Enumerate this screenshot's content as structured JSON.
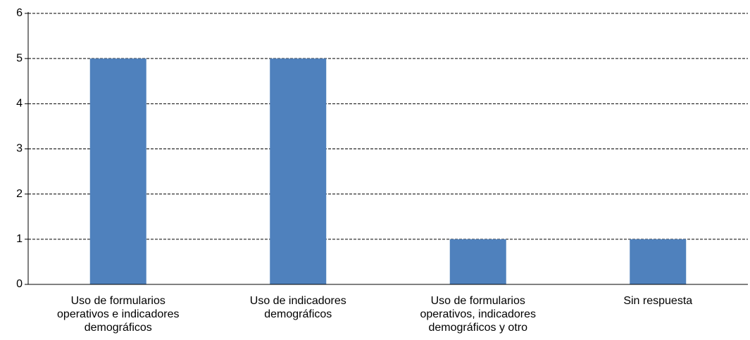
{
  "chart_data": {
    "type": "bar",
    "categories": [
      "Uso de formularios operativos e indicadores demográficos",
      "Uso de indicadores demográficos",
      "Uso de formularios operativos, indicadores demográficos y otro",
      "Sin respuesta"
    ],
    "values": [
      5,
      5,
      1,
      1
    ],
    "color": "#4f81bd",
    "ylim": [
      0,
      6
    ],
    "yticks": [
      0,
      1,
      2,
      3,
      4,
      5,
      6
    ],
    "grid": true
  }
}
